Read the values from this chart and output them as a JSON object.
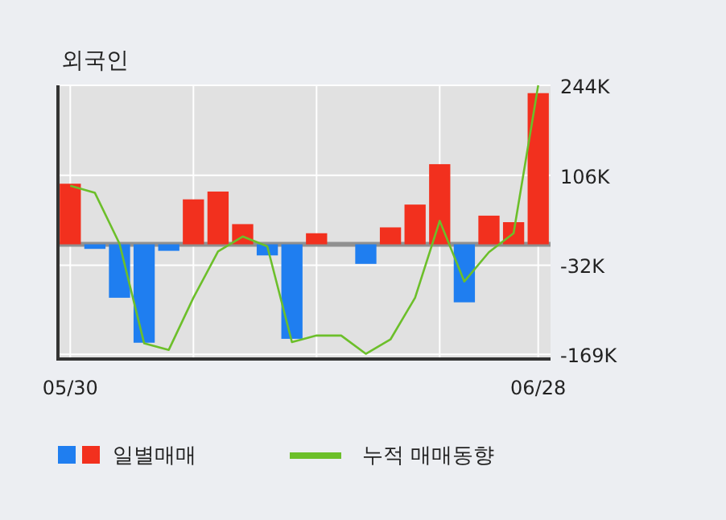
{
  "chart_data": {
    "type": "bar",
    "title": "외국인",
    "categories": [
      "05/30",
      null,
      null,
      null,
      null,
      null,
      null,
      null,
      null,
      null,
      null,
      null,
      null,
      null,
      null,
      null,
      null,
      null,
      null,
      "06/28"
    ],
    "series": [
      {
        "name": "일별매매",
        "values": [
          93,
          -7,
          -82,
          -151,
          -10,
          69,
          81,
          31,
          -17,
          -145,
          17,
          null,
          -30,
          26,
          61,
          123,
          -89,
          44,
          34,
          232
        ],
        "colors": [
          "#f2301e",
          "#1f7ef0",
          "#1f7ef0",
          "#1f7ef0",
          "#1f7ef0",
          "#f2301e",
          "#f2301e",
          "#f2301e",
          "#1f7ef0",
          "#1f7ef0",
          "#f2301e",
          "#f2301e",
          "#1f7ef0",
          "#f2301e",
          "#f2301e",
          "#f2301e",
          "#1f7ef0",
          "#f2301e",
          "#f2301e",
          "#f2301e"
        ]
      },
      {
        "name": "누적 매매동향",
        "type": "line",
        "color": "#6cbf2a",
        "values": [
          90,
          79,
          1,
          -152,
          -162,
          -82,
          -11,
          12,
          -3,
          -150,
          -140,
          -140,
          -168,
          -146,
          -82,
          36,
          -57,
          -12,
          17,
          244
        ]
      }
    ],
    "ylim": [
      -176,
      244
    ],
    "yticks": [
      {
        "value": 244,
        "label": "244K"
      },
      {
        "value": 106,
        "label": "106K"
      },
      {
        "value": -32,
        "label": "-32K"
      },
      {
        "value": -169,
        "label": "-169K"
      }
    ],
    "ref_lines": [
      {
        "axis": "y",
        "value": 0,
        "color": "#909090"
      }
    ],
    "grid": true,
    "legend": "bottom"
  }
}
